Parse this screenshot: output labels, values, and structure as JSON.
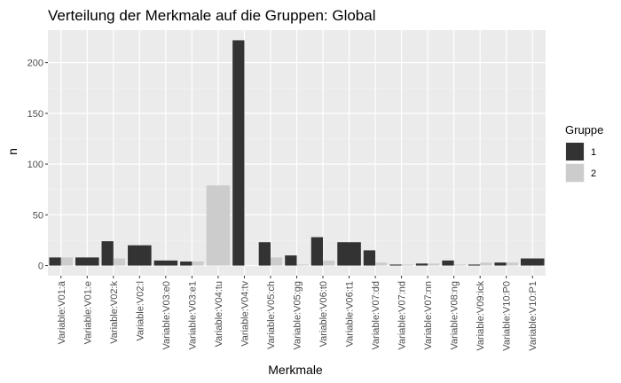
{
  "chart_data": {
    "type": "bar",
    "title": "Verteilung der Merkmale auf die Gruppen: Global",
    "xlabel": "Merkmale",
    "ylabel": "n",
    "ylim": [
      -10,
      232
    ],
    "yticks": [
      0,
      50,
      100,
      150,
      200
    ],
    "grid": true,
    "legend": {
      "title": "Gruppe",
      "placement": "right"
    },
    "categories": [
      "Variable:V01:ä",
      "Variable:V01:e",
      "Variable:V02:k",
      "Variable:V02:l",
      "Variable:V03:e0",
      "Variable:V03:e1",
      "Variable:V04:tu",
      "Variable:V04:tv",
      "Variable:V05:ch",
      "Variable:V05:gg",
      "Variable:V06:t0",
      "Variable:V06:t1",
      "Variable:V07:dd",
      "Variable:V07:nd",
      "Variable:V07:nn",
      "Variable:V08:ng",
      "Variable:V09:ick",
      "Variable:V10:P0",
      "Variable:V10:P1"
    ],
    "series": [
      {
        "name": "1",
        "color": "#333333",
        "values": [
          8,
          8,
          24,
          20,
          5,
          4,
          0,
          222,
          23,
          10,
          28,
          23,
          15,
          1,
          2,
          5,
          1,
          3,
          7
        ],
        "single_bar": [
          false,
          true,
          false,
          true,
          true,
          false,
          false,
          false,
          false,
          false,
          false,
          true,
          false,
          false,
          false,
          false,
          false,
          false,
          true
        ]
      },
      {
        "name": "2",
        "color": "#cccccc",
        "values": [
          8,
          0,
          7,
          0,
          0,
          4,
          79,
          0,
          8,
          1,
          5,
          0,
          3,
          1,
          2,
          1,
          3,
          3,
          0
        ],
        "single_bar": [
          false,
          false,
          false,
          false,
          false,
          false,
          true,
          false,
          false,
          false,
          false,
          false,
          false,
          false,
          false,
          false,
          false,
          false,
          false
        ]
      }
    ]
  }
}
